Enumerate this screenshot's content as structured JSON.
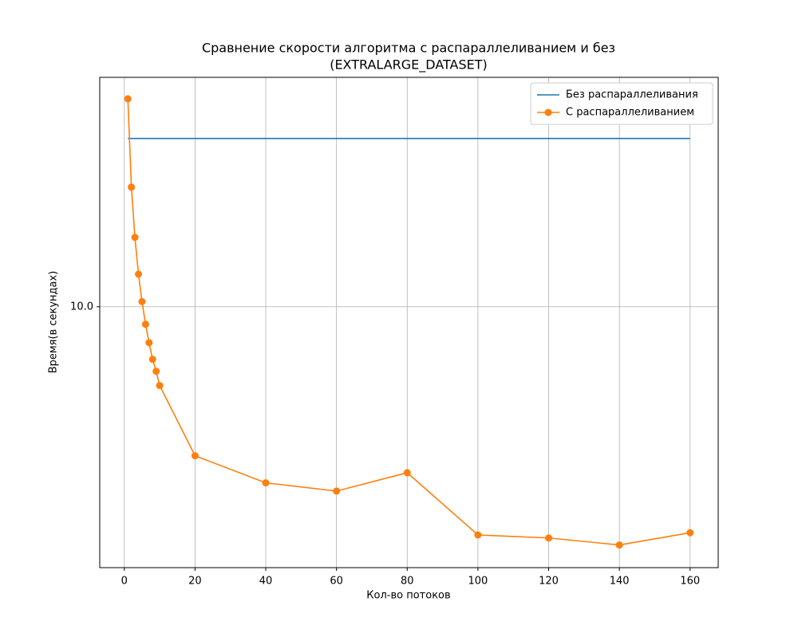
{
  "chart_data": {
    "type": "line",
    "title": "Сравнение скорости алгоритма с распараллеливанием и без",
    "subtitle": "(EXTRALARGE_DATASET)",
    "x_label": "Кол-во потоков",
    "y_label": "Время(в секундах)",
    "x": [
      1,
      2,
      3,
      4,
      5,
      6,
      7,
      8,
      9,
      10,
      20,
      40,
      60,
      80,
      100,
      120,
      140,
      160
    ],
    "series": [
      {
        "name": "Без распараллеливания",
        "color": "#1f77b4",
        "marker": false,
        "values": [
          35.7,
          35.7,
          35.7,
          35.7,
          35.7,
          35.7,
          35.7,
          35.7,
          35.7,
          35.7,
          35.7,
          35.7,
          35.7,
          35.7,
          35.7,
          35.7,
          35.7,
          35.7
        ]
      },
      {
        "name": "С распараллеливанием",
        "color": "#ff7f0e",
        "marker": true,
        "values": [
          48.2,
          24.7,
          16.9,
          12.8,
          10.4,
          8.76,
          7.62,
          6.72,
          6.14,
          5.51,
          3.24,
          2.64,
          2.48,
          2.85,
          1.78,
          1.74,
          1.65,
          1.81
        ]
      }
    ],
    "xlim": [
      -6.95,
      167.95
    ],
    "ylim": [
      1.39,
      56.7
    ],
    "xticks": [
      0,
      20,
      40,
      60,
      80,
      100,
      120,
      140,
      160
    ],
    "yticks": [
      {
        "value": 10,
        "label": "10.0"
      }
    ],
    "log_y": true,
    "grid": true,
    "legend": "upper-right"
  }
}
